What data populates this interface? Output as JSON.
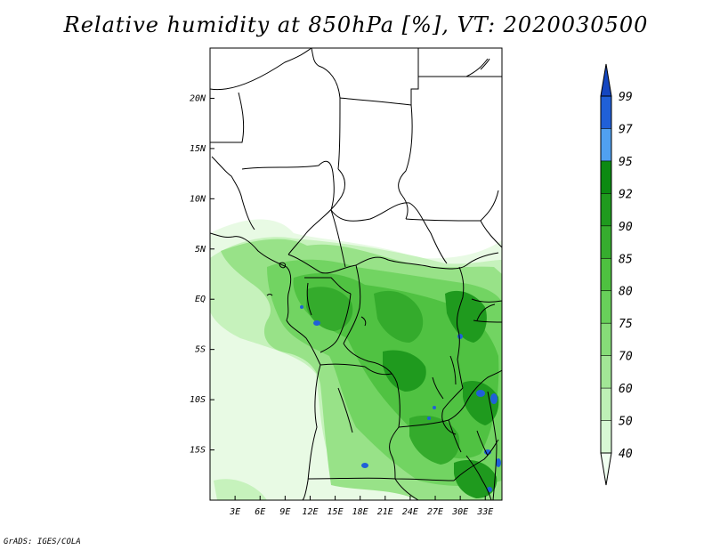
{
  "title": "Relative humidity at 850hPa [%], VT: 2020030500",
  "footer": "GrADS: IGES/COLA",
  "map": {
    "lon_range": [
      0,
      35
    ],
    "lat_range": [
      -20,
      25
    ],
    "x_ticks": [
      {
        "v": 3,
        "label": "3E"
      },
      {
        "v": 6,
        "label": "6E"
      },
      {
        "v": 9,
        "label": "9E"
      },
      {
        "v": 12,
        "label": "12E"
      },
      {
        "v": 15,
        "label": "15E"
      },
      {
        "v": 18,
        "label": "18E"
      },
      {
        "v": 21,
        "label": "21E"
      },
      {
        "v": 24,
        "label": "24E"
      },
      {
        "v": 27,
        "label": "27E"
      },
      {
        "v": 30,
        "label": "30E"
      },
      {
        "v": 33,
        "label": "33E"
      }
    ],
    "y_ticks": [
      {
        "v": 20,
        "label": "20N"
      },
      {
        "v": 15,
        "label": "15N"
      },
      {
        "v": 10,
        "label": "10N"
      },
      {
        "v": 5,
        "label": "5N"
      },
      {
        "v": 0,
        "label": "EQ"
      },
      {
        "v": -5,
        "label": "5S"
      },
      {
        "v": -10,
        "label": "10S"
      },
      {
        "v": -15,
        "label": "15S"
      }
    ]
  },
  "colorbar": {
    "levels": [
      "40",
      "50",
      "60",
      "70",
      "75",
      "80",
      "85",
      "90",
      "92",
      "95",
      "97",
      "99"
    ],
    "colors": [
      "#f0fff0",
      "#d8f8d4",
      "#bef0b6",
      "#a2e696",
      "#86dc78",
      "#68d05a",
      "#4ec140",
      "#36ad2e",
      "#1f9a1e",
      "#0c8a12",
      "#50a0f0",
      "#2060d8",
      "#1446c0"
    ]
  }
}
